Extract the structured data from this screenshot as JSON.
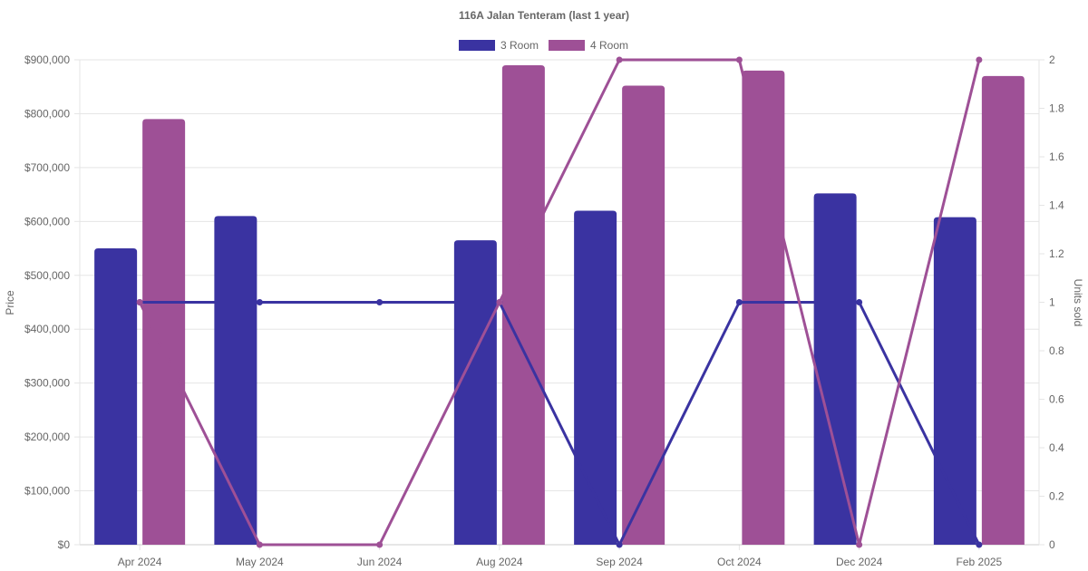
{
  "chart_data": {
    "type": "bar",
    "title": "116A Jalan Tenteram (last 1 year)",
    "categories": [
      "Apr 2024",
      "May 2024",
      "Jun 2024",
      "Aug 2024",
      "Sep 2024",
      "Oct 2024",
      "Dec 2024",
      "Feb 2025"
    ],
    "y_left": {
      "label": "Price",
      "ylim": [
        0,
        900000
      ],
      "ticks": [
        0,
        100000,
        200000,
        300000,
        400000,
        500000,
        600000,
        700000,
        800000,
        900000
      ],
      "tick_labels": [
        "$0",
        "$100,000",
        "$200,000",
        "$300,000",
        "$400,000",
        "$500,000",
        "$600,000",
        "$700,000",
        "$800,000",
        "$900,000"
      ]
    },
    "y_right": {
      "label": "Units sold",
      "ylim": [
        0,
        2
      ],
      "ticks": [
        0,
        0.2,
        0.4,
        0.6,
        0.8,
        1,
        1.2,
        1.4,
        1.6,
        1.8,
        2
      ],
      "tick_labels": [
        "0",
        "0.2",
        "0.4",
        "0.6",
        "0.8",
        "1",
        "1.2",
        "1.4",
        "1.6",
        "1.8",
        "2"
      ]
    },
    "series": [
      {
        "name": "3 Room",
        "color": "#3a33a1",
        "price": [
          550000,
          610000,
          null,
          565000,
          620000,
          null,
          652000,
          608000
        ],
        "units_sold": [
          1,
          1,
          1,
          1,
          0,
          1,
          1,
          0
        ]
      },
      {
        "name": "4 Room",
        "color": "#9e5096",
        "price": [
          790000,
          null,
          null,
          890000,
          852000,
          880000,
          null,
          870000
        ],
        "units_sold": [
          1,
          0,
          0,
          1,
          2,
          2,
          0,
          2
        ]
      }
    ],
    "legend_position": "top",
    "grid": true
  }
}
